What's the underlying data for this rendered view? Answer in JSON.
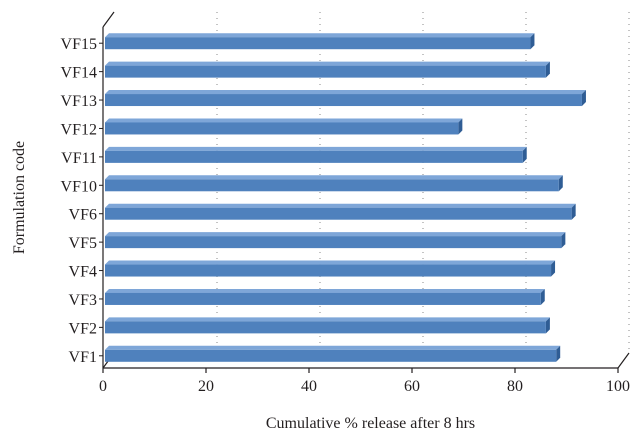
{
  "chart_data": {
    "type": "bar",
    "orientation": "horizontal",
    "style": "3d",
    "categories": [
      "VF1",
      "VF2",
      "VF3",
      "VF4",
      "VF5",
      "VF6",
      "VF10",
      "VF11",
      "VF12",
      "VF13",
      "VF14",
      "VF15"
    ],
    "values": [
      88,
      86,
      85,
      87,
      89,
      91,
      88.5,
      81.5,
      69,
      93,
      86,
      83
    ],
    "xlabel": "Cumulative % release after 8 hrs",
    "ylabel": "Formulation code",
    "xlim": [
      0,
      100
    ],
    "xticks": [
      "0",
      "20",
      "40",
      "60",
      "80",
      "100"
    ],
    "grid": "vertical dotted",
    "colors": {
      "bar_front": "#4f81bd",
      "bar_top": "#7ea6d8",
      "bar_side": "#2f5d95",
      "axis": "#231f20",
      "grid": "#8a8a8a"
    }
  }
}
